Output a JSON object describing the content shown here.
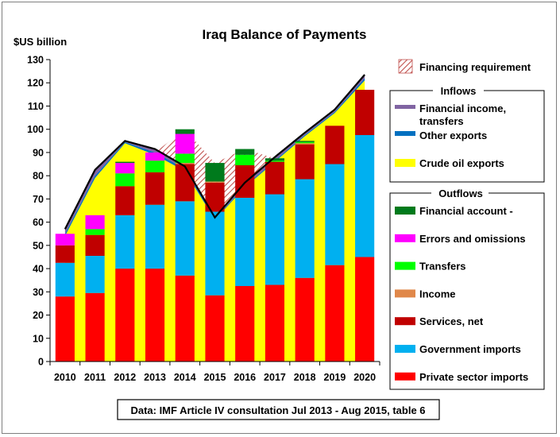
{
  "chart_data": {
    "type": "bar",
    "title": "Iraq Balance of Payments",
    "ylabel": "$US billion",
    "ylim": [
      0,
      130
    ],
    "yticks": [
      0,
      10,
      20,
      30,
      40,
      50,
      60,
      70,
      80,
      90,
      100,
      110,
      120,
      130
    ],
    "categories": [
      "2010",
      "2011",
      "2012",
      "2013",
      "2014",
      "2015",
      "2016",
      "2017",
      "2018",
      "2019",
      "2020"
    ],
    "outflow_series": [
      {
        "name": "Private sector imports",
        "color": "#ff0000",
        "values": [
          28,
          29.5,
          40,
          40,
          37,
          28.5,
          32.5,
          33,
          36,
          41.5,
          45
        ]
      },
      {
        "name": "Government imports",
        "color": "#00b0f0",
        "values": [
          14.5,
          16,
          23,
          27.5,
          32,
          36,
          38,
          39,
          42.5,
          43.5,
          52.5
        ]
      },
      {
        "name": "Services, net",
        "color": "#c00000",
        "values": [
          7.5,
          9,
          12.5,
          14,
          16,
          12.5,
          14,
          14,
          15,
          16.5,
          19.5
        ]
      },
      {
        "name": "Income",
        "color": "#e0884a",
        "values": [
          0,
          0,
          0,
          0,
          0.5,
          0.5,
          0,
          0,
          0.5,
          0,
          0
        ]
      },
      {
        "name": "Transfers",
        "color": "#00ff00",
        "values": [
          0,
          2.5,
          5.5,
          5,
          4,
          0,
          4.5,
          0.5,
          0.5,
          0,
          0
        ]
      },
      {
        "name": "Errors and omissions",
        "color": "#ff00ff",
        "values": [
          5,
          6,
          4.5,
          3.5,
          8.5,
          0,
          0,
          0,
          0,
          0,
          0
        ]
      },
      {
        "name": "Financial account -",
        "color": "#007a1c",
        "values": [
          0,
          0,
          0.5,
          0,
          2,
          8,
          2.5,
          1,
          0.5,
          0,
          0
        ]
      }
    ],
    "inflow_area": {
      "crude_oil_exports": {
        "name": "Crude oil exports",
        "color": "#ffff00",
        "values": [
          54,
          79,
          94,
          89,
          82,
          61,
          75,
          86,
          97,
          107,
          121
        ]
      },
      "other_exports": {
        "name": "Other exports",
        "color": "#0070c0",
        "values": [
          55,
          80,
          94.5,
          90,
          83,
          61.5,
          75.5,
          86.5,
          97.5,
          107.5,
          122
        ]
      },
      "total_inflows": {
        "name": "Financial income, transfers",
        "color": "#8064a2",
        "values": [
          57,
          82.5,
          95,
          91.5,
          84,
          62,
          77,
          88,
          98.5,
          108.5,
          123.5
        ]
      }
    },
    "financing_requirement": {
      "name": "Financing requirement",
      "color": "#c0504d"
    },
    "legend": {
      "placement": "right",
      "inflows_header": "Inflows",
      "outflows_header": "Outflows"
    },
    "source": "Data: IMF Article IV consultation Jul 2013 - Aug 2015, table 6"
  }
}
